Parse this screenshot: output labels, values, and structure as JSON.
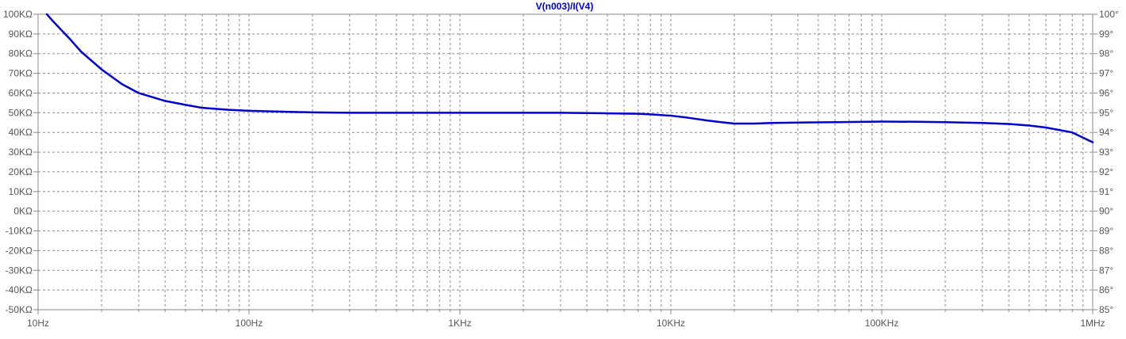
{
  "chart_data": {
    "type": "line",
    "title": "V(n003)/I(V4)",
    "title_color": "#0000cc",
    "trace_color": "#0000cc",
    "grid": true,
    "grid_style": "dotted",
    "x_scale": "log",
    "xlim": [
      10,
      1000000
    ],
    "x_tick_labels": [
      {
        "value": 10,
        "label": "10Hz"
      },
      {
        "value": 100,
        "label": "100Hz"
      },
      {
        "value": 1000,
        "label": "1KHz"
      },
      {
        "value": 10000,
        "label": "10KHz"
      },
      {
        "value": 100000,
        "label": "100KHz"
      },
      {
        "value": 1000000,
        "label": "1MHz"
      }
    ],
    "y_left": {
      "ylim": [
        -50,
        100
      ],
      "unit": "KΩ",
      "tick_labels": [
        {
          "value": 100,
          "label": "100KΩ"
        },
        {
          "value": 90,
          "label": "90KΩ"
        },
        {
          "value": 80,
          "label": "80KΩ"
        },
        {
          "value": 70,
          "label": "70KΩ"
        },
        {
          "value": 60,
          "label": "60KΩ"
        },
        {
          "value": 50,
          "label": "50KΩ"
        },
        {
          "value": 40,
          "label": "40KΩ"
        },
        {
          "value": 30,
          "label": "30KΩ"
        },
        {
          "value": 20,
          "label": "20KΩ"
        },
        {
          "value": 10,
          "label": "10KΩ"
        },
        {
          "value": 0,
          "label": "0KΩ"
        },
        {
          "value": -10,
          "label": "-10KΩ"
        },
        {
          "value": -20,
          "label": "-20KΩ"
        },
        {
          "value": -30,
          "label": "-30KΩ"
        },
        {
          "value": -40,
          "label": "-40KΩ"
        },
        {
          "value": -50,
          "label": "-50KΩ"
        }
      ]
    },
    "y_right": {
      "ylim": [
        85,
        100
      ],
      "unit": "°",
      "tick_labels": [
        {
          "value": 100,
          "label": "100°"
        },
        {
          "value": 99,
          "label": "99°"
        },
        {
          "value": 98,
          "label": "98°"
        },
        {
          "value": 97,
          "label": "97°"
        },
        {
          "value": 96,
          "label": "96°"
        },
        {
          "value": 95,
          "label": "95°"
        },
        {
          "value": 94,
          "label": "94°"
        },
        {
          "value": 93,
          "label": "93°"
        },
        {
          "value": 92,
          "label": "92°"
        },
        {
          "value": 91,
          "label": "91°"
        },
        {
          "value": 90,
          "label": "90°"
        },
        {
          "value": 89,
          "label": "89°"
        },
        {
          "value": 88,
          "label": "88°"
        },
        {
          "value": 87,
          "label": "87°"
        },
        {
          "value": 86,
          "label": "86°"
        },
        {
          "value": 85,
          "label": "85°"
        }
      ]
    },
    "series": [
      {
        "axis": "left",
        "x": [
          11,
          12,
          14,
          16,
          20,
          25,
          30,
          40,
          50,
          60,
          80,
          100,
          150,
          200,
          300,
          500,
          1000,
          2000,
          3000,
          5000,
          7000,
          8000,
          10000,
          12000,
          15000,
          18000,
          20000,
          25000,
          30000,
          40000,
          60000,
          100000,
          150000,
          200000,
          300000,
          400000,
          500000,
          600000,
          800000,
          1000000
        ],
        "y": [
          100,
          95.5,
          88,
          81,
          72,
          64.5,
          60,
          56,
          54,
          52.5,
          51.5,
          51,
          50.5,
          50.2,
          50,
          50,
          50,
          50,
          50,
          49.7,
          49.5,
          49.2,
          48.5,
          47.5,
          46,
          45,
          44.5,
          44.5,
          44.8,
          45,
          45.2,
          45.5,
          45.4,
          45.2,
          44.8,
          44.3,
          43.5,
          42.5,
          40,
          35
        ]
      }
    ]
  }
}
